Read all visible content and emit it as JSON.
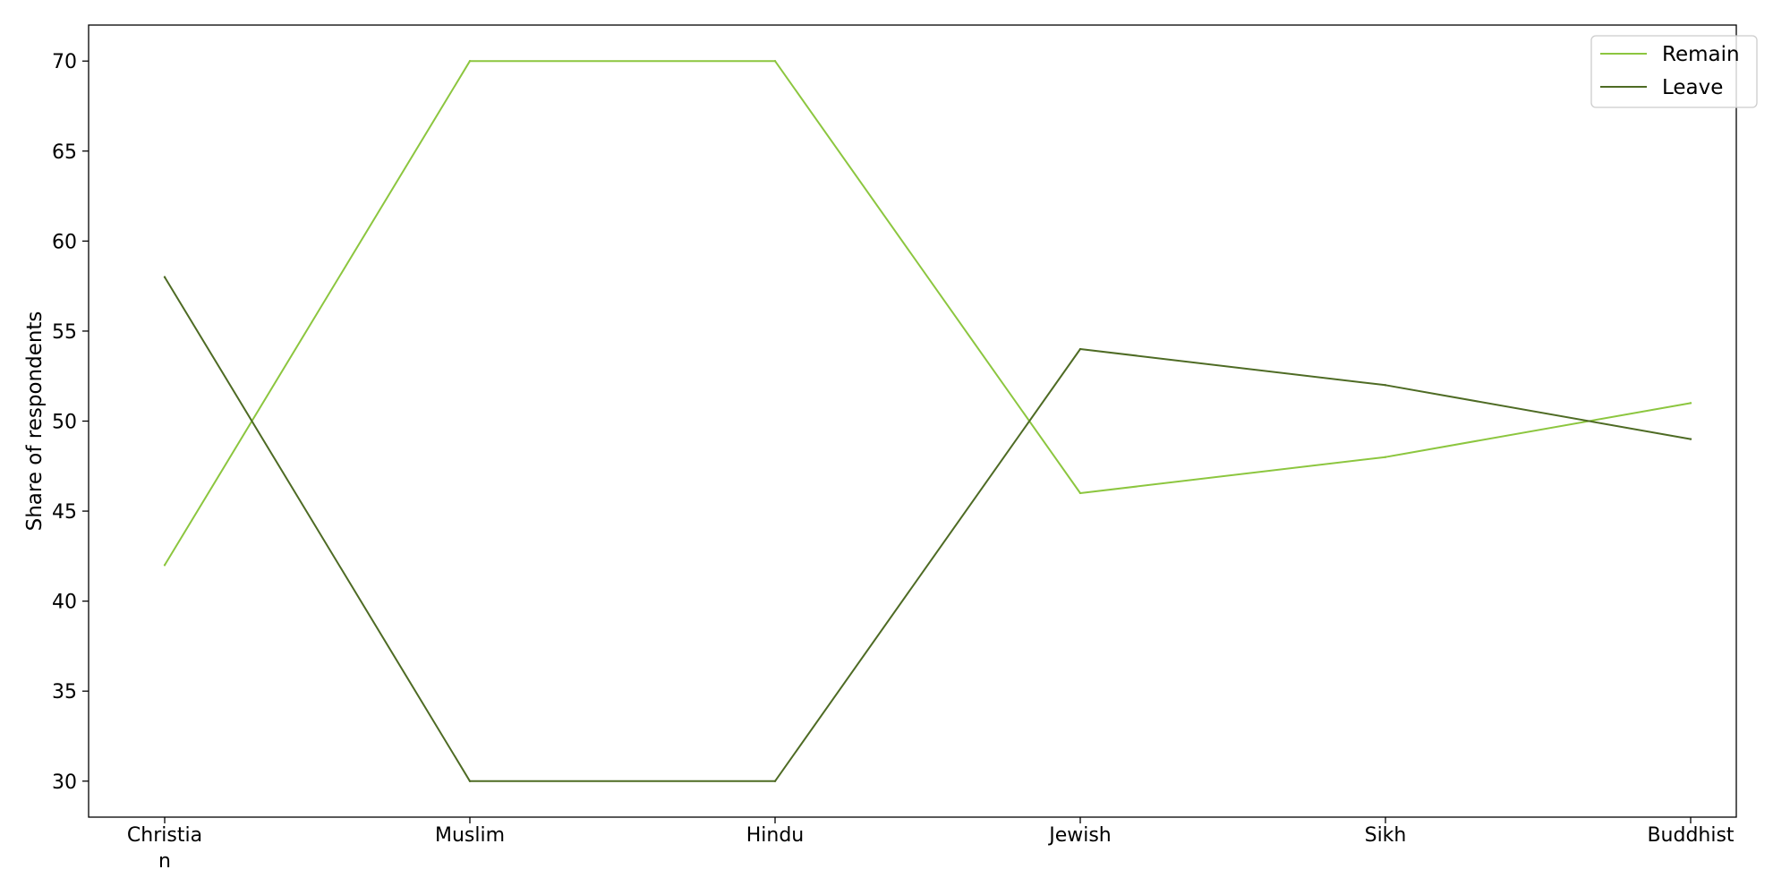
{
  "chart_data": {
    "type": "line",
    "categories": [
      "Christian",
      "Muslim",
      "Hindu",
      "Jewish",
      "Sikh",
      "Buddhist"
    ],
    "category_display": [
      [
        "Christia",
        "n"
      ],
      [
        "Muslim"
      ],
      [
        "Hindu"
      ],
      [
        "Jewish"
      ],
      [
        "Sikh"
      ],
      [
        "Buddhist"
      ]
    ],
    "series": [
      {
        "name": "Remain",
        "values": [
          42,
          70,
          70,
          46,
          48,
          51
        ],
        "color": "#8cc63f"
      },
      {
        "name": "Leave",
        "values": [
          58,
          30,
          30,
          54,
          52,
          49
        ],
        "color": "#4e6b24"
      }
    ],
    "ylabel": "Share of respondents",
    "xlabel": "",
    "ylim": [
      28,
      72
    ],
    "yticks": [
      30,
      35,
      40,
      45,
      50,
      55,
      60,
      65,
      70
    ],
    "grid": false,
    "legend_position": "top-right"
  }
}
